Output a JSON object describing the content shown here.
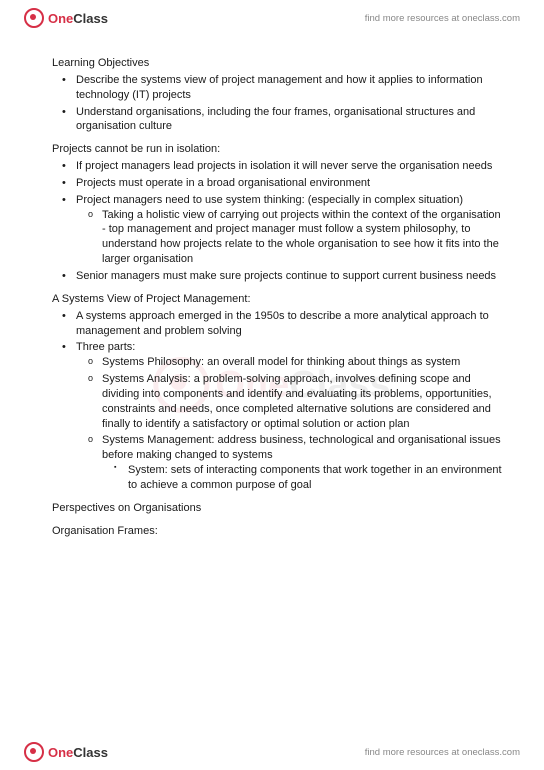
{
  "brand": {
    "one": "One",
    "class": "Class"
  },
  "tagline": "find more resources at oneclass.com",
  "sections": [
    {
      "title": "Learning Objectives",
      "items": [
        {
          "text": "Describe the systems view of project management and how it applies to information technology (IT) projects"
        },
        {
          "text": "Understand organisations, including the four frames, organisational structures and organisation culture"
        }
      ]
    },
    {
      "title": "Projects cannot be run in isolation:",
      "items": [
        {
          "text": "If project managers lead projects in isolation it will never serve the organisation needs"
        },
        {
          "text": "Projects must operate in a broad organisational environment"
        },
        {
          "text": "Project managers need to use system thinking: (especially in complex situation)",
          "sub": [
            {
              "text": "Taking a holistic view of carrying out projects within the context of the organisation - top management and project manager must follow a system philosophy, to understand how projects relate to the whole organisation to see how it fits into the larger organisation"
            }
          ]
        },
        {
          "text": "Senior managers must make sure projects continue to support current business needs"
        }
      ]
    },
    {
      "title": "A Systems View of Project Management:",
      "items": [
        {
          "text": "A systems approach emerged in the 1950s to describe a more analytical approach to management and problem solving"
        },
        {
          "text": "Three parts:",
          "sub": [
            {
              "text": "Systems Philosophy: an overall model for thinking about things as system"
            },
            {
              "text": "Systems Analysis: a problem-solving approach, involves defining scope and dividing into components and identify and evaluating its problems, opportunities, constraints and needs, once completed alternative solutions are considered and finally to identify a satisfactory or optimal solution or action plan"
            },
            {
              "text": "Systems Management: address business, technological and organisational issues before making changed to systems",
              "sub": [
                {
                  "text": "System: sets of interacting components that work together in an environment to achieve a common purpose of goal"
                }
              ]
            }
          ]
        }
      ]
    },
    {
      "title": "Perspectives on Organisations",
      "items": []
    },
    {
      "title": "Organisation Frames:",
      "items": []
    }
  ]
}
